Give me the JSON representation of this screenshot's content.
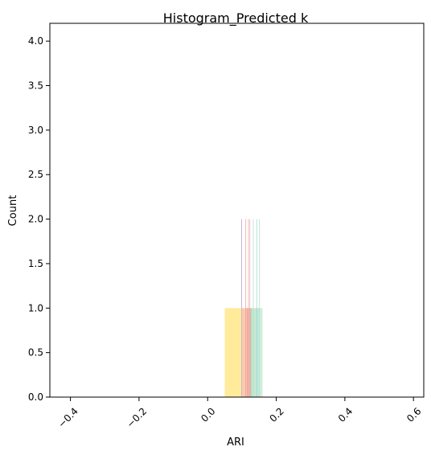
{
  "chart_data": {
    "type": "histogram",
    "title": "Histogram_Predicted k",
    "xlabel": "ARI",
    "ylabel": "Count",
    "xlim": [
      -0.46,
      0.63
    ],
    "ylim": [
      0,
      4.2
    ],
    "x_ticks": [
      -0.4,
      -0.2,
      0.0,
      0.2,
      0.4,
      0.6
    ],
    "x_tick_labels": [
      "−0.4",
      "−0.2",
      "0.0",
      "0.2",
      "0.4",
      "0.6"
    ],
    "x_tick_rotation": 45,
    "y_ticks": [
      0.0,
      0.5,
      1.0,
      1.5,
      2.0,
      2.5,
      3.0,
      3.5,
      4.0
    ],
    "y_tick_labels": [
      "0.0",
      "0.5",
      "1.0",
      "1.5",
      "2.0",
      "2.5",
      "3.0",
      "3.5",
      "4.0"
    ],
    "grid": false,
    "legend": false,
    "bars": [
      {
        "x0": 0.05,
        "x1": 0.098,
        "count": 1,
        "color": "#ffe36e",
        "opacity": 0.7
      },
      {
        "x0": 0.098,
        "x1": 0.1,
        "count": 2,
        "color": "#a98dcc",
        "opacity": 0.7
      },
      {
        "x0": 0.1,
        "x1": 0.116,
        "count": 1,
        "color": "#f6a36b",
        "opacity": 0.55
      },
      {
        "x0": 0.11,
        "x1": 0.112,
        "count": 2,
        "color": "#f28b8b",
        "opacity": 0.7
      },
      {
        "x0": 0.114,
        "x1": 0.128,
        "count": 1,
        "color": "#f07d7d",
        "opacity": 0.55
      },
      {
        "x0": 0.118,
        "x1": 0.12,
        "count": 2,
        "color": "#f4a070",
        "opacity": 0.7
      },
      {
        "x0": 0.122,
        "x1": 0.124,
        "count": 2,
        "color": "#c9a3d8",
        "opacity": 0.7
      },
      {
        "x0": 0.124,
        "x1": 0.138,
        "count": 1,
        "color": "#9fd7a0",
        "opacity": 0.55
      },
      {
        "x0": 0.132,
        "x1": 0.134,
        "count": 2,
        "color": "#a7d8c0",
        "opacity": 0.7
      },
      {
        "x0": 0.138,
        "x1": 0.15,
        "count": 1,
        "color": "#8fd6b8",
        "opacity": 0.55
      },
      {
        "x0": 0.142,
        "x1": 0.144,
        "count": 2,
        "color": "#8fcfd0",
        "opacity": 0.7
      },
      {
        "x0": 0.15,
        "x1": 0.152,
        "count": 2,
        "color": "#9fd8b0",
        "opacity": 0.7
      },
      {
        "x0": 0.15,
        "x1": 0.16,
        "count": 1,
        "color": "#a8e0c0",
        "opacity": 0.55
      }
    ]
  }
}
